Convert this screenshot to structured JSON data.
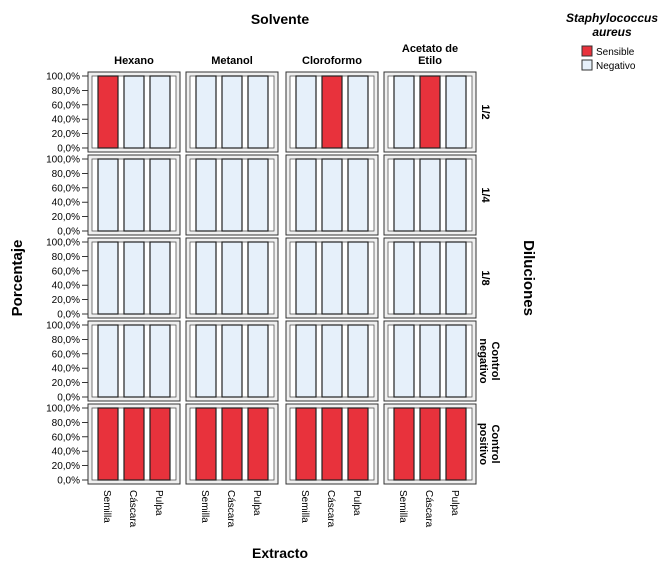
{
  "chart_data": {
    "type": "bar",
    "title": "Solvente",
    "xlabel": "Extracto",
    "ylabel": "Porcentaje",
    "row_axis_label": "Diluciones",
    "legend": {
      "title": "Staphylococcus aureus",
      "placement": "top-right",
      "entries": [
        {
          "label": "Sensible",
          "color": "#e8323c"
        },
        {
          "label": "Negativo",
          "color": "#e6f0fa"
        }
      ]
    },
    "columns": [
      "Hexano",
      "Metanol",
      "Cloroformo",
      "Acetato de Etilo"
    ],
    "rows": [
      "1/2",
      "1/4",
      "1/8",
      "Control negativo",
      "Control positivo"
    ],
    "categories": [
      "Semilla",
      "Cáscara",
      "Pulpa"
    ],
    "y_ticks": [
      "0,0%",
      "20,0%",
      "40,0%",
      "60,0%",
      "80,0%",
      "100,0%"
    ],
    "ylim": [
      0,
      100
    ],
    "grid": false,
    "values": [
      100,
      100,
      100
    ],
    "sensible_flags": [
      [
        [
          1,
          0,
          0
        ],
        [
          0,
          0,
          0
        ],
        [
          0,
          1,
          0
        ],
        [
          0,
          1,
          0
        ]
      ],
      [
        [
          0,
          0,
          0
        ],
        [
          0,
          0,
          0
        ],
        [
          0,
          0,
          0
        ],
        [
          0,
          0,
          0
        ]
      ],
      [
        [
          0,
          0,
          0
        ],
        [
          0,
          0,
          0
        ],
        [
          0,
          0,
          0
        ],
        [
          0,
          0,
          0
        ]
      ],
      [
        [
          0,
          0,
          0
        ],
        [
          0,
          0,
          0
        ],
        [
          0,
          0,
          0
        ],
        [
          0,
          0,
          0
        ]
      ],
      [
        [
          1,
          1,
          1
        ],
        [
          1,
          1,
          1
        ],
        [
          1,
          1,
          1
        ],
        [
          1,
          1,
          1
        ]
      ]
    ]
  }
}
